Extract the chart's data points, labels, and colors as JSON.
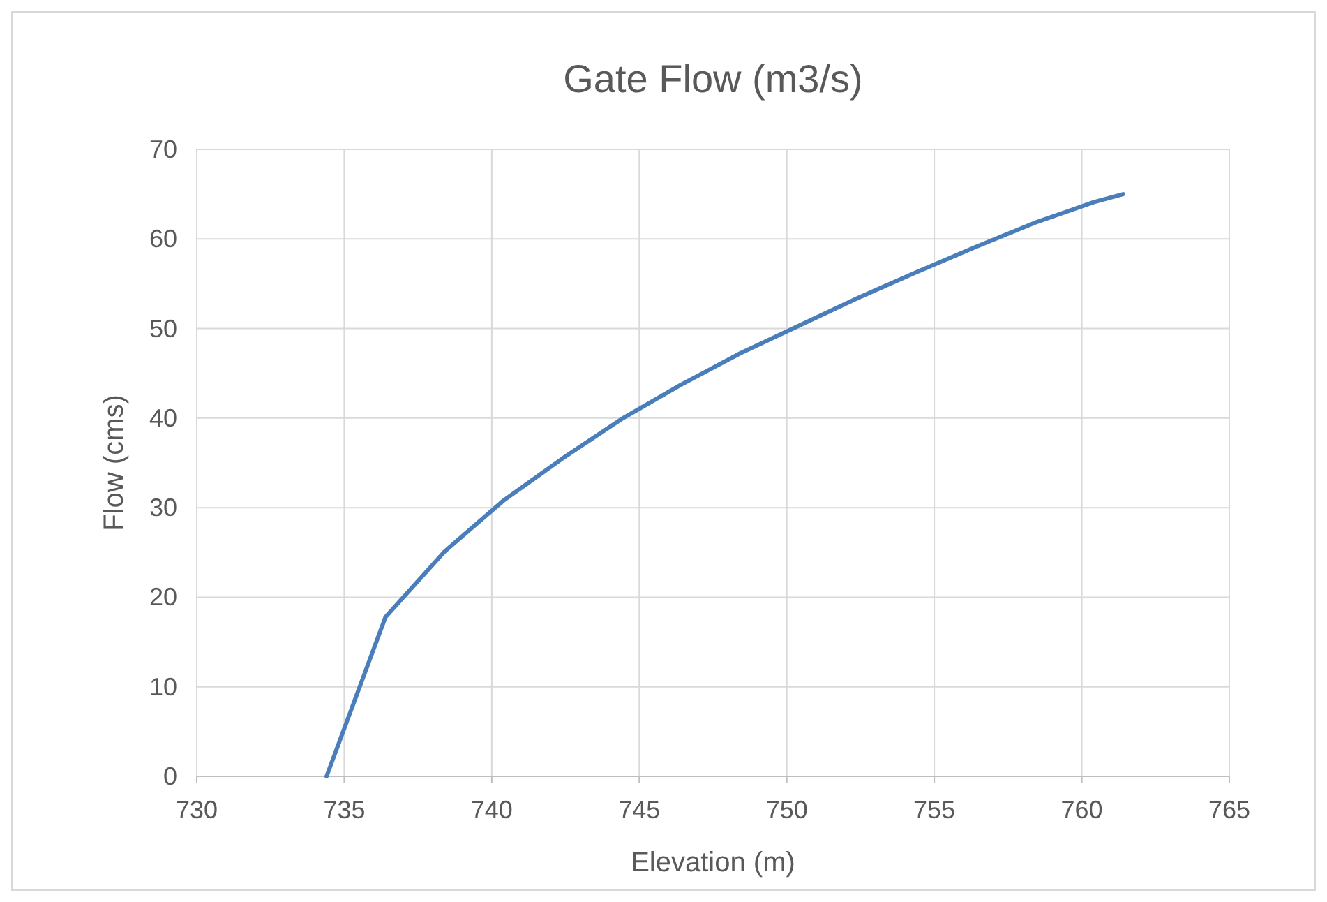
{
  "chart_data": {
    "type": "line",
    "title": "Gate Flow (m3/s)",
    "xlabel": "Elevation (m)",
    "ylabel": "Flow (cms)",
    "x": [
      734.4,
      736.4,
      738.4,
      740.4,
      742.4,
      744.4,
      746.4,
      748.4,
      750.4,
      752.4,
      754.4,
      756.4,
      758.4,
      760.4,
      761.4
    ],
    "series": [
      {
        "color": "#4a7ebb",
        "values": [
          0,
          17.8,
          25.1,
          30.8,
          35.5,
          39.9,
          43.7,
          47.2,
          50.3,
          53.4,
          56.3,
          59.1,
          61.8,
          64.1,
          65.0
        ]
      }
    ],
    "xlim": [
      730,
      765
    ],
    "xticks": [
      730,
      735,
      740,
      745,
      750,
      755,
      760,
      765
    ],
    "ylim": [
      0,
      70
    ],
    "yticks": [
      0,
      10,
      20,
      30,
      40,
      50,
      60,
      70
    ],
    "grid": true,
    "marker": "none",
    "line_style": "solid"
  }
}
